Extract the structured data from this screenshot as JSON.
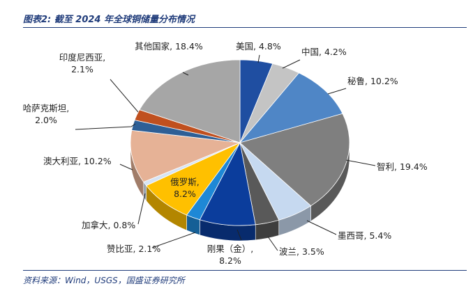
{
  "header": {
    "title": "图表2:  截至 2024 年全球铜储量分布情况"
  },
  "footer": {
    "source": "资料来源：Wind，USGS，国盛证券研究所"
  },
  "chart_data": {
    "type": "pie",
    "title": "图表2:  截至 2024 年全球铜储量分布情况",
    "unit": "%",
    "slices": [
      {
        "name": "美国",
        "value": 4.8,
        "label": "美国, 4.8%",
        "color": "#1f4ea1"
      },
      {
        "name": "中国",
        "value": 4.2,
        "label": "中国, 4.2%",
        "color": "#c4c4c4"
      },
      {
        "name": "秘鲁",
        "value": 10.2,
        "label": "秘鲁, 10.2%",
        "color": "#4f86c6"
      },
      {
        "name": "智利",
        "value": 19.4,
        "label": "智利, 19.4%",
        "color": "#7f7f7f"
      },
      {
        "name": "墨西哥",
        "value": 5.4,
        "label": "墨西哥, 5.4%",
        "color": "#c6d9f0"
      },
      {
        "name": "波兰",
        "value": 3.5,
        "label": "波兰, 3.5%",
        "color": "#595959"
      },
      {
        "name": "刚果（金）",
        "value": 8.2,
        "label": "刚果（金）,\n8.2%",
        "color": "#0b3d9c"
      },
      {
        "name": "赞比亚",
        "value": 2.1,
        "label": "赞比亚, 2.1%",
        "color": "#1e88d6"
      },
      {
        "name": "俄罗斯",
        "value": 8.2,
        "label": "俄罗斯,\n8.2%",
        "color": "#ffc000"
      },
      {
        "name": "加拿大",
        "value": 0.8,
        "label": "加拿大, 0.8%",
        "color": "#d6e4f5"
      },
      {
        "name": "澳大利亚",
        "value": 10.2,
        "label": "澳大利亚, 10.2%",
        "color": "#e6b296"
      },
      {
        "name": "哈萨克斯坦",
        "value": 2.0,
        "label": "哈萨克斯坦,\n2.0%",
        "color": "#2e5f96"
      },
      {
        "name": "印度尼西亚",
        "value": 2.1,
        "label": "印度尼西亚,\n2.1%",
        "color": "#c0501f"
      },
      {
        "name": "其他国家",
        "value": 18.4,
        "label": "其他国家, 18.4%",
        "color": "#a6a6a6"
      }
    ]
  }
}
